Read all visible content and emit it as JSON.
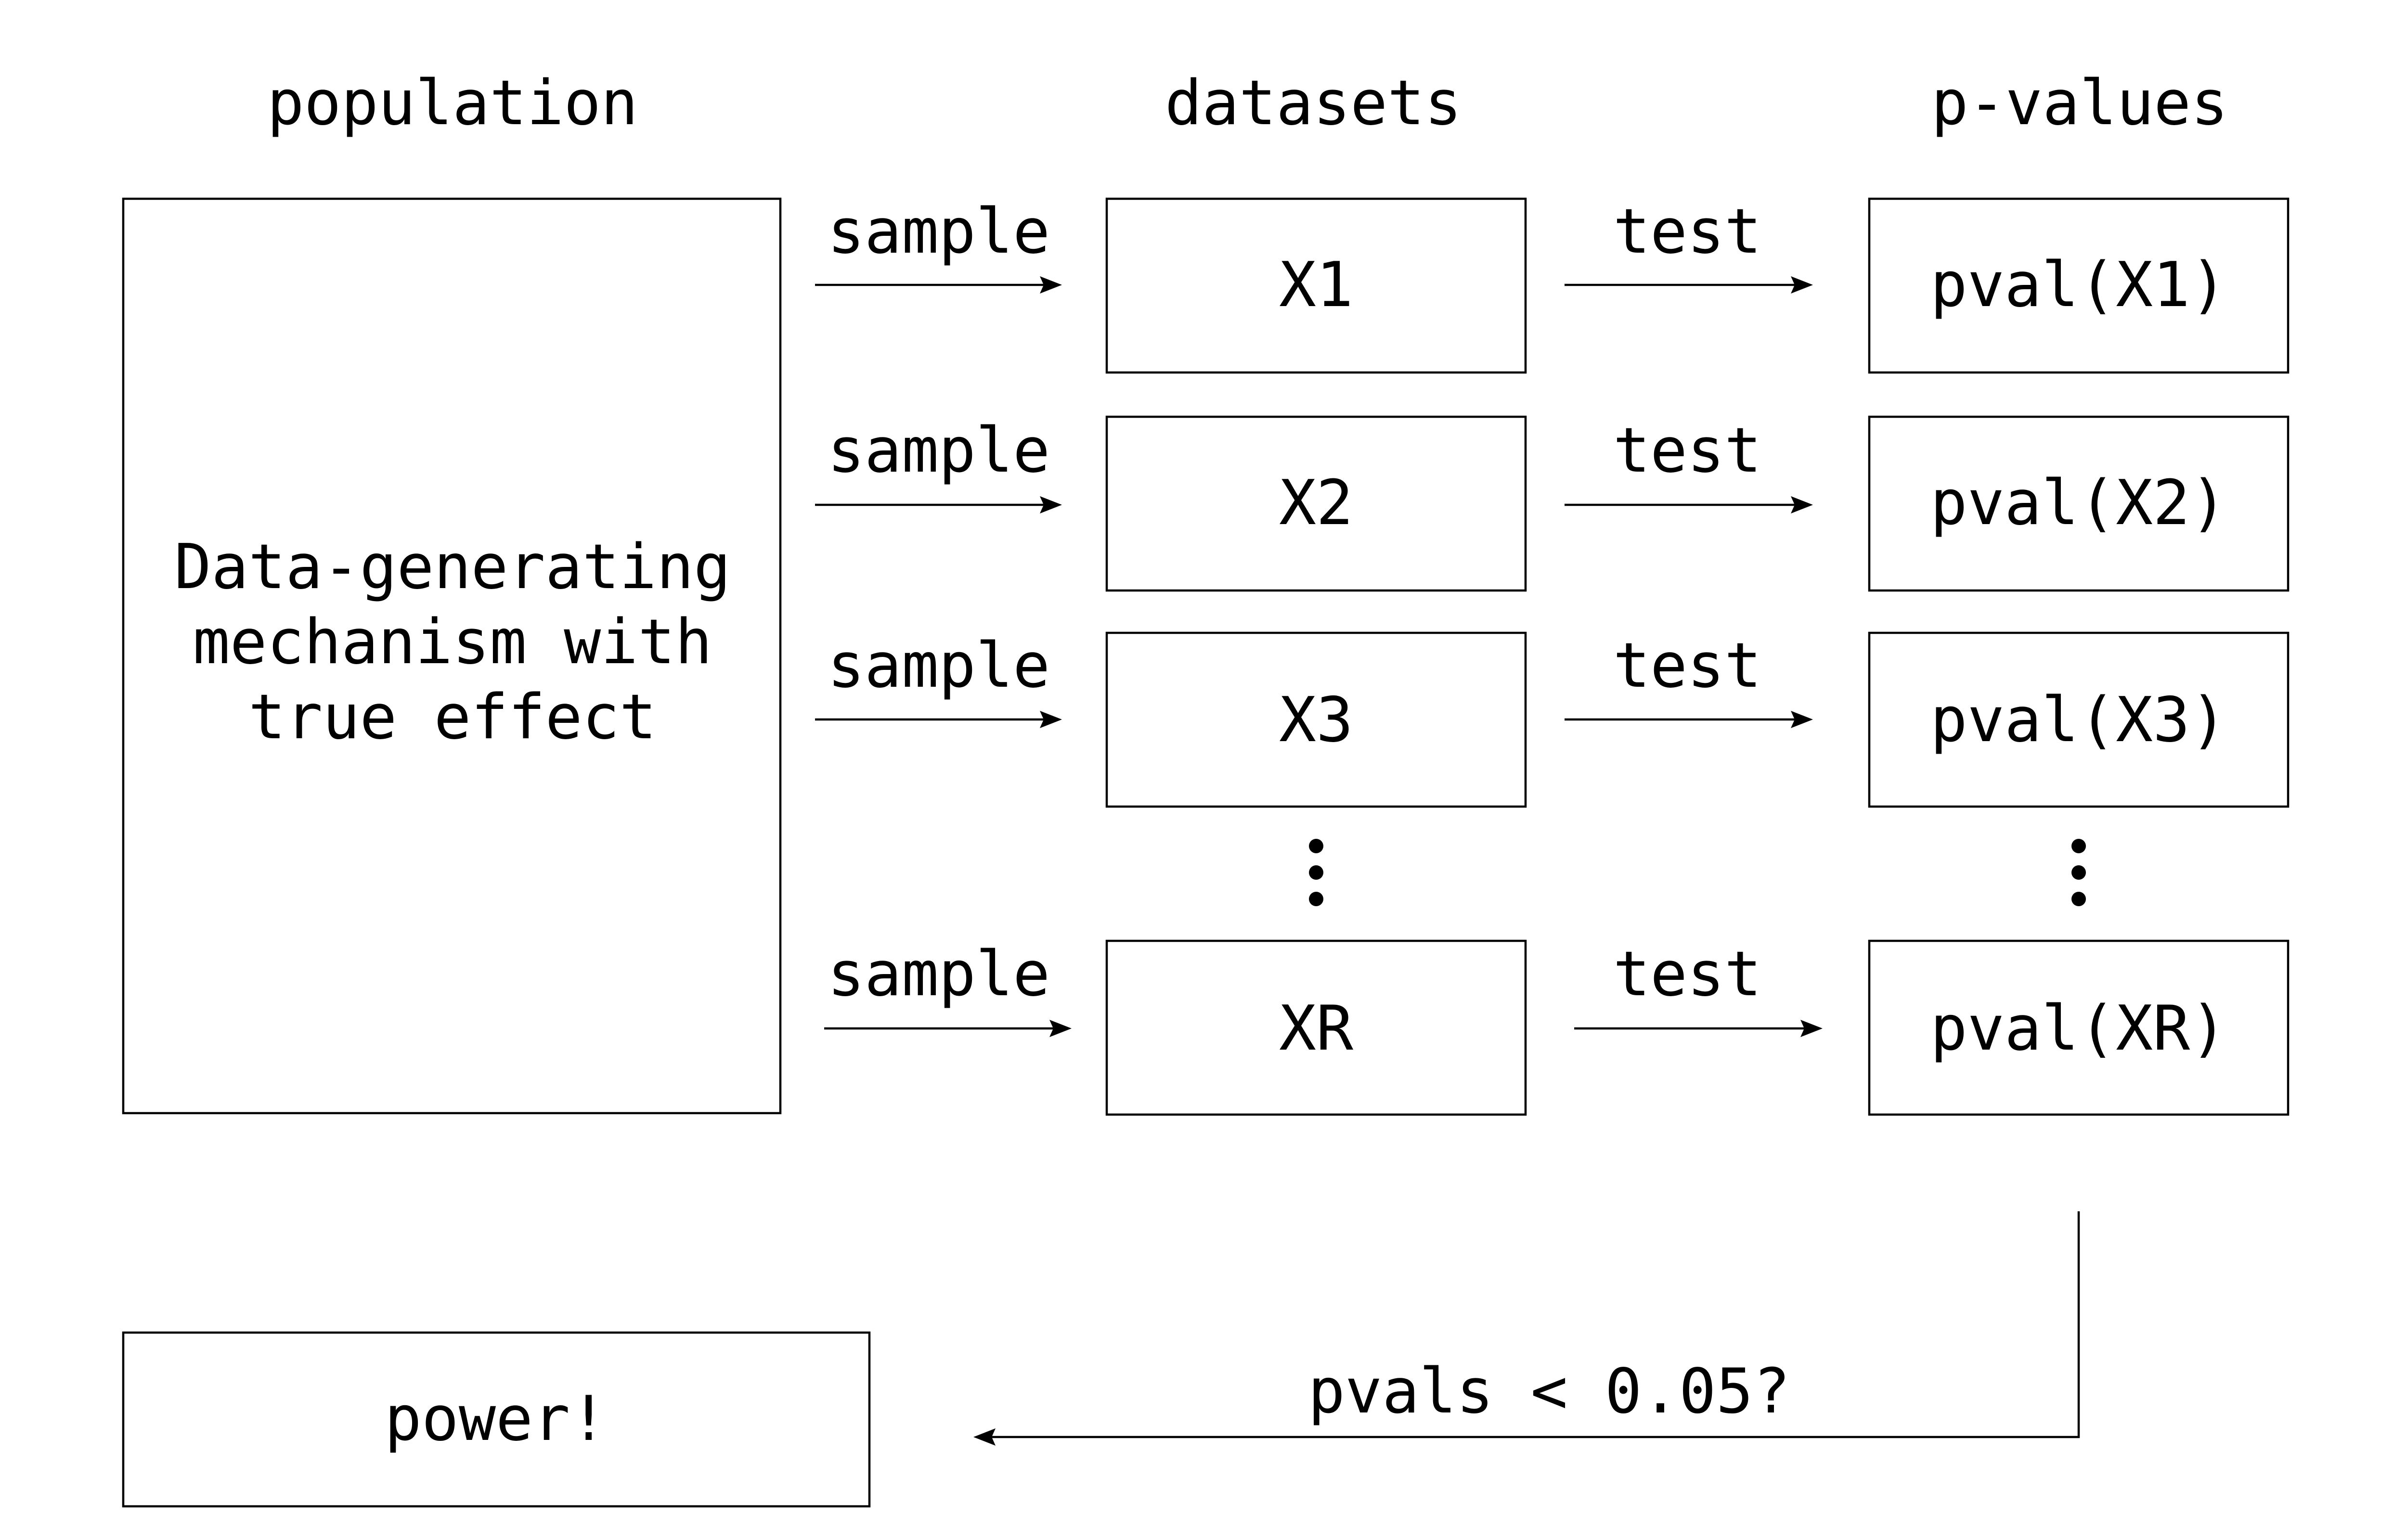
{
  "headers": {
    "population": "population",
    "datasets": "datasets",
    "pvalues": "p-values"
  },
  "population_box": {
    "lines": [
      "Data-generating",
      "mechanism with",
      "true effect"
    ]
  },
  "rows": [
    {
      "sample_label": "sample",
      "dataset": "X1",
      "test_label": "test",
      "pvalue": "pval(X1)"
    },
    {
      "sample_label": "sample",
      "dataset": "X2",
      "test_label": "test",
      "pvalue": "pval(X2)"
    },
    {
      "sample_label": "sample",
      "dataset": "X3",
      "test_label": "test",
      "pvalue": "pval(X3)"
    },
    {
      "sample_label": "sample",
      "dataset": "XR",
      "test_label": "test",
      "pvalue": "pval(XR)"
    }
  ],
  "ellipsis_symbol": "⋮",
  "threshold_label": "pvals < 0.05?",
  "result_box": {
    "label": "power!"
  }
}
